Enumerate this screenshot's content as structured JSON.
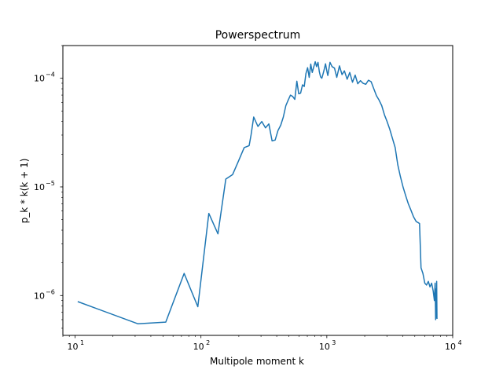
{
  "chart_data": {
    "type": "line",
    "title": "Powerspectrum",
    "xlabel": "Multipole moment k",
    "ylabel": "p_k * k(k + 1)",
    "xscale": "log",
    "yscale": "log",
    "xlim": [
      8,
      10000
    ],
    "ylim": [
      4.3e-07,
      0.0002
    ],
    "grid": false,
    "series_color": "#1f77b4",
    "x_ticks": [
      {
        "value": 10,
        "base": "10",
        "exp": "1"
      },
      {
        "value": 100,
        "base": "10",
        "exp": "2"
      },
      {
        "value": 1000,
        "base": "10",
        "exp": "3"
      },
      {
        "value": 10000,
        "base": "10",
        "exp": "4"
      }
    ],
    "y_ticks": [
      {
        "value": 1e-06,
        "base": "10",
        "exp": "−6"
      },
      {
        "value": 1e-05,
        "base": "10",
        "exp": "−5"
      },
      {
        "value": 0.0001,
        "base": "10",
        "exp": "−4"
      }
    ],
    "series": [
      {
        "x": [
          10.5,
          31.5,
          52.5,
          73.5,
          94.5,
          115.5,
          136.5,
          157.5,
          178.5,
          199.5,
          220.5,
          241.5,
          250,
          262.5,
          283.5,
          304.5,
          325.5,
          346.5,
          367.5,
          388.5,
          409.5,
          430.5,
          451.5,
          472.5,
          493.5,
          514.5,
          535.5,
          556.5,
          577.5,
          598.5,
          619.5,
          640.5,
          661.5,
          682.5,
          703.5,
          724.5,
          745.5,
          766.5,
          787.5,
          808.5,
          829.5,
          850.5,
          871.5,
          892.5,
          913.5,
          934.5,
          955.5,
          976.5,
          997.5,
          1018.5,
          1060,
          1100,
          1150,
          1200,
          1260,
          1320,
          1380,
          1450,
          1520,
          1600,
          1680,
          1760,
          1850,
          1940,
          2040,
          2140,
          2250,
          2360,
          2480,
          2600,
          2730,
          2870,
          3010,
          3160,
          3320,
          3490,
          3660,
          3840,
          4030,
          4230,
          4440,
          4660,
          4890,
          5130,
          5300,
          5450,
          5600,
          5800,
          6000,
          6200,
          6400,
          6600,
          6800,
          7000,
          7150,
          7250,
          7320,
          7380,
          7420,
          7460,
          7500
        ],
        "y": [
          8.8e-07,
          5.5e-07,
          5.7e-07,
          1.6e-06,
          7.9e-07,
          5.7e-06,
          3.7e-06,
          1.18e-05,
          1.3e-05,
          1.75e-05,
          2.3e-05,
          2.4e-05,
          3e-05,
          4.4e-05,
          3.6e-05,
          4e-05,
          3.5e-05,
          3.8e-05,
          2.65e-05,
          2.7e-05,
          3.3e-05,
          3.7e-05,
          4.4e-05,
          5.6e-05,
          6.3e-05,
          7e-05,
          6.8e-05,
          6.4e-05,
          9.4e-05,
          7.2e-05,
          7.3e-05,
          8.7e-05,
          8.4e-05,
          0.000111,
          0.000125,
          0.000102,
          0.000135,
          0.000113,
          0.000127,
          0.000142,
          0.000128,
          0.00014,
          0.000115,
          0.000103,
          0.0001,
          0.00011,
          0.000122,
          0.000136,
          0.000118,
          0.000106,
          0.00014,
          0.000128,
          0.000124,
          0.000102,
          0.00013,
          0.000108,
          0.000117,
          9.8e-05,
          0.000113,
          9.2e-05,
          0.000107,
          8.9e-05,
          9.5e-05,
          9e-05,
          8.8e-05,
          9.6e-05,
          9.3e-05,
          8e-05,
          6.9e-05,
          6.3e-05,
          5.6e-05,
          4.6e-05,
          4e-05,
          3.4e-05,
          2.8e-05,
          2.3e-05,
          1.6e-05,
          1.25e-05,
          1e-05,
          8.3e-06,
          7e-06,
          6.1e-06,
          5.3e-06,
          4.8e-06,
          4.7e-06,
          4.6e-06,
          1.8e-06,
          1.6e-06,
          1.3e-06,
          1.25e-06,
          1.35e-06,
          1.2e-06,
          1.3e-06,
          1.1e-06,
          9e-07,
          1.3e-06,
          6e-07,
          1.15e-06,
          6.3e-07,
          1.35e-06,
          6.1e-07
        ]
      }
    ]
  }
}
